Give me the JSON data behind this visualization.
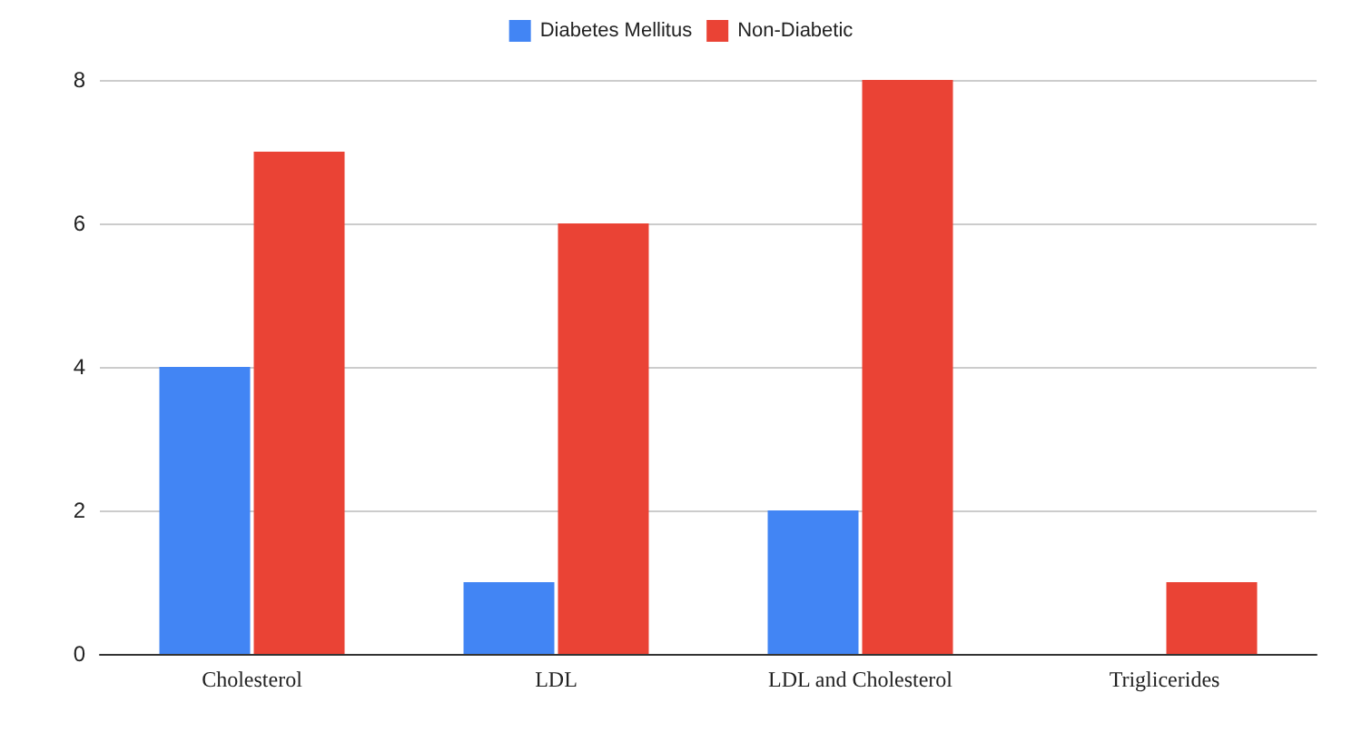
{
  "chart_data": {
    "type": "bar",
    "categories": [
      "Cholesterol",
      "LDL",
      "LDL and Cholesterol",
      "Triglicerides"
    ],
    "series": [
      {
        "name": "Diabetes Mellitus",
        "color": "#4285f4",
        "values": [
          4,
          1,
          2,
          0
        ]
      },
      {
        "name": "Non-Diabetic",
        "color": "#ea4335",
        "values": [
          7,
          6,
          8,
          1
        ]
      }
    ],
    "ylim": [
      0,
      8
    ],
    "yticks": [
      0,
      2,
      4,
      6,
      8
    ],
    "grid": "y",
    "legend": "top"
  }
}
